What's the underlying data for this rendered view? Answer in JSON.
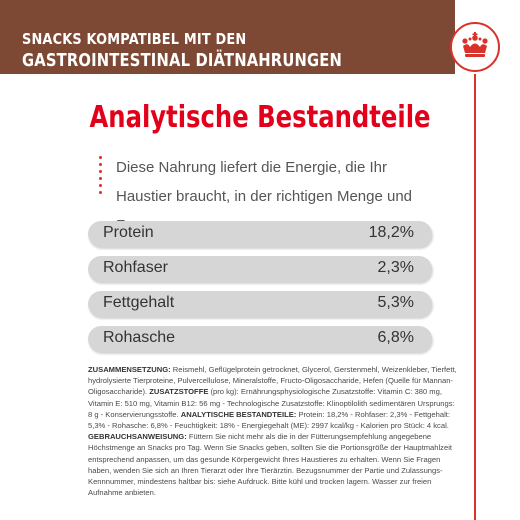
{
  "banner": {
    "line1": "SNACKS KOMPATIBEL MIT DEN",
    "line2": "GASTROINTESTINAL DIÄTNAHRUNGEN"
  },
  "logo_icon": "royal-crown-logo",
  "colors": {
    "banner": "#7e4934",
    "accent": "#e2001a",
    "row_bg": "#d6d6d6"
  },
  "title": "Analytische Bestandteile",
  "intro": "Diese Nahrung liefert die Energie, die Ihr Haustier braucht, in der richtigen Menge und Form.",
  "nutrients": [
    {
      "label": "Protein",
      "value": "18,2%"
    },
    {
      "label": "Rohfaser",
      "value": "2,3%"
    },
    {
      "label": "Fettgehalt",
      "value": "5,3%"
    },
    {
      "label": "Rohasche",
      "value": "6,8%"
    }
  ],
  "composition": {
    "heading": "ZUSAMMENSETZUNG:",
    "text": " Reismehl, Geflügelprotein getrocknet, Glycerol, Gerstenmehl, Weizenkleber, Tierfett, hydrolysierte Tierproteine, Pulvercellulose, Mineralstoffe, Fructo-Oligosaccharide, Hefen (Quelle für Mannan-Oligosaccharide). "
  },
  "additives": {
    "heading": "ZUSATZSTOFFE",
    "text": " (pro kg): Ernährungsphysiologische Zusatzstoffe: Vitamin C: 380 mg, Vitamin E: 510 mg, Vitamin B12: 56 mg - Technologische Zusatzstoffe: Klinoptilolith sedimentären Ursprungs: 8 g - Konservierungsstoffe. "
  },
  "analysis": {
    "heading": "ANALYTISCHE BESTANDTEILE:",
    "text": " Protein: 18,2% - Rohfaser: 2,3% - Fettgehalt: 5,3% - Rohasche: 6,8% - Feuchtigkeit: 18% - Energiegehalt (ME): 2997 kcal/kg - Kalorien pro Stück: 4 kcal. "
  },
  "usage": {
    "heading": "GEBRAUCHSANWEISUNG:",
    "text": " Füttern Sie nicht mehr als die in der Fütterungsempfehlung angegebene Höchstmenge an Snacks pro Tag. Wenn Sie Snacks geben, sollten Sie die Portionsgröße der Hauptmahlzeit entsprechend anpassen, um das gesunde Körpergewicht Ihres Haustieres zu erhalten. Wenn Sie Fragen haben, wenden Sie sich an Ihren Tierarzt oder Ihre Tierärztin. Bezugsnummer der Partie und Zulassungs-Kennnummer, mindestens haltbar bis: siehe Aufdruck. Bitte kühl und trocken lagern. Wasser zur freien Aufnahme anbieten."
  }
}
